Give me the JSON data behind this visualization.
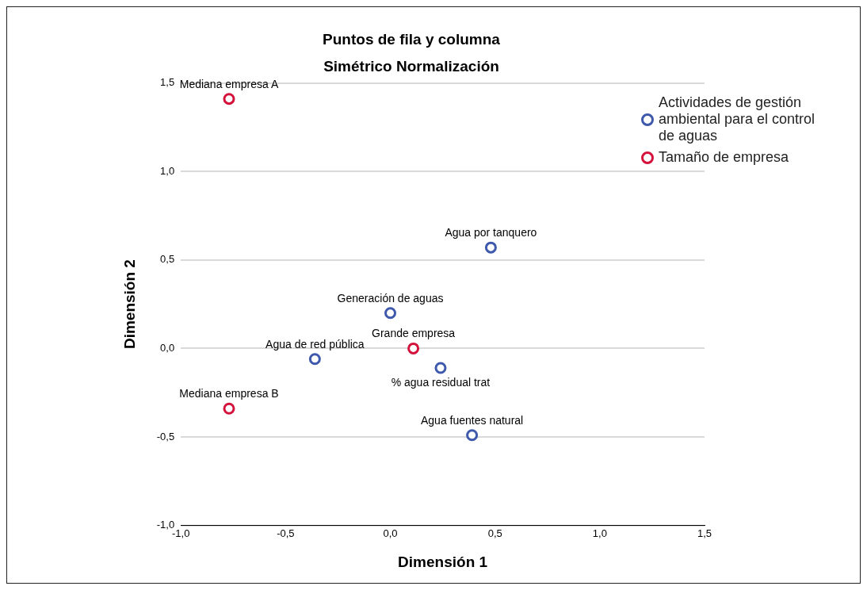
{
  "chart_data": {
    "type": "scatter",
    "title": "Puntos de fila y columna",
    "subtitle": "Simétrico Normalización",
    "xlabel": "Dimensión 1",
    "ylabel": "Dimensión 2",
    "xlim": [
      -1.0,
      1.5
    ],
    "ylim": [
      -1.0,
      1.5
    ],
    "xticks": [
      {
        "value": -1.0,
        "label": "-1,0"
      },
      {
        "value": -0.5,
        "label": "-0,5"
      },
      {
        "value": 0.0,
        "label": "0,0"
      },
      {
        "value": 0.5,
        "label": "0,5"
      },
      {
        "value": 1.0,
        "label": "1,0"
      },
      {
        "value": 1.5,
        "label": "1,5"
      }
    ],
    "yticks": [
      {
        "value": -1.0,
        "label": "-1,0"
      },
      {
        "value": -0.5,
        "label": "-0,5"
      },
      {
        "value": 0.0,
        "label": "0,0"
      },
      {
        "value": 0.5,
        "label": "0,5"
      },
      {
        "value": 1.0,
        "label": "1,0"
      },
      {
        "value": 1.5,
        "label": "1,5"
      }
    ],
    "grid": "y",
    "legend": "top right",
    "marker": "circle",
    "series": [
      {
        "name": "Actividades de gestión ambiental para el control de aguas",
        "color": "#3e58ac",
        "x": [
          0.48,
          0.0,
          -0.36,
          0.24,
          0.39
        ],
        "values": [
          0.57,
          0.2,
          -0.06,
          -0.11,
          -0.49
        ]
      },
      {
        "name": "Tamaño de empresa",
        "color": "#d4133d",
        "x": [
          -0.77,
          0.11,
          -0.77
        ],
        "values": [
          1.41,
          0.0,
          -0.34
        ]
      }
    ],
    "annotations": [
      {
        "text": "Mediana empresa A",
        "x": -0.77,
        "y": 1.41
      },
      {
        "text": "Agua por tanquero",
        "x": 0.48,
        "y": 0.57
      },
      {
        "text": "Generación de aguas",
        "x": 0.0,
        "y": 0.2
      },
      {
        "text": "Grande empresa",
        "x": 0.11,
        "y": 0.0
      },
      {
        "text": "Agua de red pública",
        "x": -0.36,
        "y": -0.06
      },
      {
        "text": "% agua residual trat",
        "x": 0.24,
        "y": -0.11
      },
      {
        "text": "Mediana empresa B",
        "x": -0.77,
        "y": -0.34
      },
      {
        "text": "Agua fuentes natural",
        "x": 0.39,
        "y": -0.49
      }
    ]
  }
}
